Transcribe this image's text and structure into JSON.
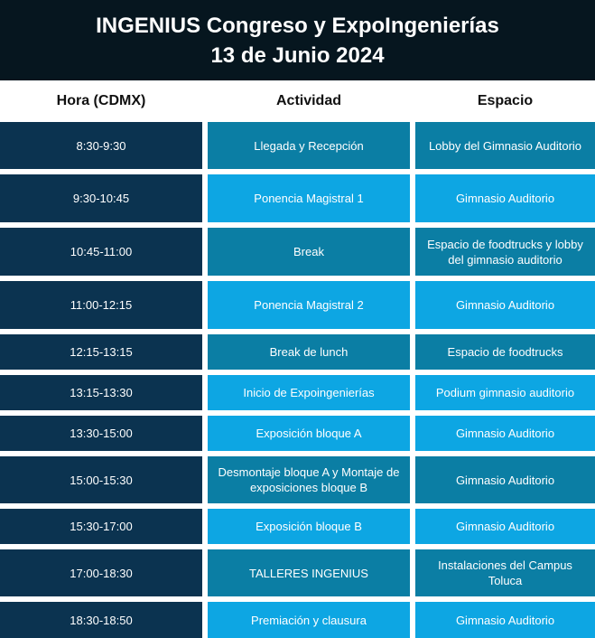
{
  "header": {
    "title_line1": "INGENIUS Congreso y ExpoIngenierías",
    "title_line2": "13 de Junio 2024"
  },
  "columns": {
    "time": "Hora (CDMX)",
    "activity": "Actividad",
    "space": "Espacio"
  },
  "colors": {
    "header_bg": "#06161f",
    "time_cell": "#0b3350",
    "dark_teal": "#0b7ea4",
    "light_blue": "#0da6e3"
  },
  "rows": [
    {
      "time": "8:30-9:30",
      "activity": "Llegada y Recepción",
      "space": "Lobby del Gimnasio Auditorio"
    },
    {
      "time": "9:30-10:45",
      "activity": "Ponencia Magistral 1",
      "space": "Gimnasio Auditorio"
    },
    {
      "time": "10:45-11:00",
      "activity": "Break",
      "space": "Espacio de foodtrucks y lobby del gimnasio auditorio"
    },
    {
      "time": "11:00-12:15",
      "activity": "Ponencia Magistral 2",
      "space": "Gimnasio Auditorio"
    },
    {
      "time": "12:15-13:15",
      "activity": "Break de lunch",
      "space": "Espacio de foodtrucks"
    },
    {
      "time": "13:15-13:30",
      "activity": "Inicio de Expoingenierías",
      "space": "Podium gimnasio auditorio"
    },
    {
      "time": "13:30-15:00",
      "activity": "Exposición bloque A",
      "space": "Gimnasio Auditorio"
    },
    {
      "time": "15:00-15:30",
      "activity": "Desmontaje bloque A y Montaje de exposiciones bloque B",
      "space": "Gimnasio Auditorio"
    },
    {
      "time": "15:30-17:00",
      "activity": "Exposición bloque B",
      "space": "Gimnasio Auditorio"
    },
    {
      "time": "17:00-18:30",
      "activity": "TALLERES INGENIUS",
      "space": "Instalaciones del Campus Toluca"
    },
    {
      "time": "18:30-18:50",
      "activity": "Premiación y clausura",
      "space": "Gimnasio Auditorio"
    }
  ]
}
